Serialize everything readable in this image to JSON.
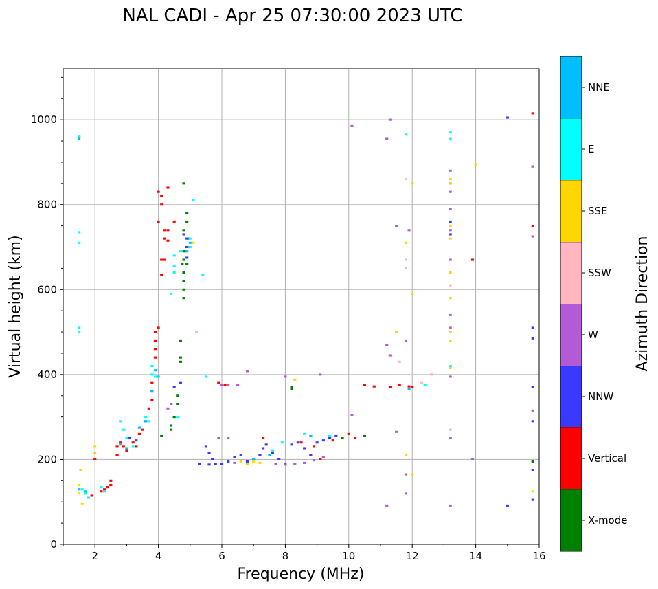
{
  "chart_data": {
    "type": "scatter",
    "title": "NAL CADI - Apr 25 07:30:00 2023 UTC",
    "xlabel": "Frequency (MHz)",
    "ylabel": "Virtual height (km)",
    "xlim": [
      1,
      16
    ],
    "ylim": [
      0,
      1120
    ],
    "xticks": [
      2,
      4,
      6,
      8,
      10,
      12,
      14,
      16
    ],
    "yticks": [
      0,
      200,
      400,
      600,
      800,
      1000
    ],
    "grid": true,
    "colorbar": {
      "label": "Azimuth Direction",
      "categories": [
        {
          "name": "X-mode",
          "color": "#008000"
        },
        {
          "name": "Vertical",
          "color": "#ff0000"
        },
        {
          "name": "NNW",
          "color": "#3a3aff"
        },
        {
          "name": "W",
          "color": "#b35ad6"
        },
        {
          "name": "SSW",
          "color": "#ffb6c1"
        },
        {
          "name": "SSE",
          "color": "#ffd700"
        },
        {
          "name": "E",
          "color": "#00ffff"
        },
        {
          "name": "NNE",
          "color": "#00bfff"
        }
      ]
    },
    "series": [
      {
        "name": "X-mode",
        "points": [
          [
            4.8,
            850
          ],
          [
            4.9,
            780
          ],
          [
            4.9,
            760
          ],
          [
            4.8,
            740
          ],
          [
            4.9,
            700
          ],
          [
            4.8,
            690
          ],
          [
            4.8,
            670
          ],
          [
            4.9,
            660
          ],
          [
            4.8,
            640
          ],
          [
            4.8,
            620
          ],
          [
            4.8,
            600
          ],
          [
            4.8,
            580
          ],
          [
            4.7,
            480
          ],
          [
            4.7,
            440
          ],
          [
            4.7,
            430
          ],
          [
            4.6,
            350
          ],
          [
            4.6,
            330
          ],
          [
            4.5,
            300
          ],
          [
            4.4,
            280
          ],
          [
            4.4,
            270
          ],
          [
            4.1,
            255
          ],
          [
            5.9,
            380
          ],
          [
            8.2,
            370
          ],
          [
            8.2,
            365
          ],
          [
            9.8,
            250
          ],
          [
            10.5,
            255
          ],
          [
            15.8,
            195
          ],
          [
            4.95,
            720
          ],
          [
            4.85,
            690
          ],
          [
            4.75,
            660
          ]
        ]
      },
      {
        "name": "Vertical",
        "points": [
          [
            1.5,
            960
          ],
          [
            4.0,
            830
          ],
          [
            4.1,
            820
          ],
          [
            4.3,
            840
          ],
          [
            4.1,
            800
          ],
          [
            4.0,
            760
          ],
          [
            4.3,
            740
          ],
          [
            4.2,
            720
          ],
          [
            4.3,
            715
          ],
          [
            4.1,
            670
          ],
          [
            4.2,
            670
          ],
          [
            4.1,
            635
          ],
          [
            4.0,
            510
          ],
          [
            3.9,
            500
          ],
          [
            3.9,
            480
          ],
          [
            3.9,
            460
          ],
          [
            3.9,
            440
          ],
          [
            3.8,
            380
          ],
          [
            3.8,
            360
          ],
          [
            3.8,
            340
          ],
          [
            3.7,
            320
          ],
          [
            3.6,
            290
          ],
          [
            3.5,
            270
          ],
          [
            3.4,
            260
          ],
          [
            3.3,
            230
          ],
          [
            3.2,
            240
          ],
          [
            3.0,
            220
          ],
          [
            2.9,
            230
          ],
          [
            2.8,
            240
          ],
          [
            2.7,
            230
          ],
          [
            2.7,
            210
          ],
          [
            2.5,
            150
          ],
          [
            2.5,
            140
          ],
          [
            2.4,
            135
          ],
          [
            2.3,
            130
          ],
          [
            2.2,
            125
          ],
          [
            2.0,
            200
          ],
          [
            1.9,
            115
          ],
          [
            7.3,
            250
          ],
          [
            8.5,
            240
          ],
          [
            8.9,
            230
          ],
          [
            9.1,
            200
          ],
          [
            9.5,
            245
          ],
          [
            10.0,
            260
          ],
          [
            10.2,
            250
          ],
          [
            10.5,
            375
          ],
          [
            10.8,
            372
          ],
          [
            11.3,
            370
          ],
          [
            11.6,
            375
          ],
          [
            11.9,
            372
          ],
          [
            12.0,
            370
          ],
          [
            13.9,
            670
          ],
          [
            15.8,
            1015
          ],
          [
            15.8,
            750
          ],
          [
            5.9,
            380
          ],
          [
            6.1,
            375
          ],
          [
            4.5,
            760
          ],
          [
            4.2,
            740
          ]
        ]
      },
      {
        "name": "NNW",
        "points": [
          [
            4.9,
            720
          ],
          [
            4.9,
            700
          ],
          [
            4.8,
            730
          ],
          [
            4.9,
            675
          ],
          [
            4.7,
            380
          ],
          [
            4.5,
            370
          ],
          [
            4.4,
            330
          ],
          [
            5.5,
            230
          ],
          [
            5.6,
            215
          ],
          [
            5.7,
            200
          ],
          [
            5.8,
            190
          ],
          [
            6.0,
            190
          ],
          [
            6.2,
            195
          ],
          [
            6.4,
            205
          ],
          [
            6.6,
            210
          ],
          [
            6.8,
            195
          ],
          [
            7.0,
            200
          ],
          [
            7.2,
            210
          ],
          [
            7.3,
            225
          ],
          [
            7.4,
            235
          ],
          [
            7.6,
            215
          ],
          [
            7.8,
            200
          ],
          [
            8.0,
            190
          ],
          [
            8.2,
            235
          ],
          [
            8.4,
            240
          ],
          [
            8.6,
            225
          ],
          [
            8.8,
            210
          ],
          [
            9.0,
            240
          ],
          [
            9.2,
            245
          ],
          [
            9.4,
            250
          ],
          [
            9.6,
            255
          ],
          [
            13.2,
            760
          ],
          [
            13.2,
            730
          ],
          [
            15.0,
            1005
          ],
          [
            15.8,
            890
          ],
          [
            15.8,
            510
          ],
          [
            15.8,
            485
          ],
          [
            15.8,
            370
          ],
          [
            15.8,
            290
          ],
          [
            15.8,
            175
          ],
          [
            15.8,
            105
          ],
          [
            15.0,
            90
          ],
          [
            3.1,
            250
          ],
          [
            3.3,
            245
          ],
          [
            5.3,
            190
          ],
          [
            5.6,
            188
          ]
        ]
      },
      {
        "name": "W",
        "points": [
          [
            4.4,
            330
          ],
          [
            4.3,
            320
          ],
          [
            6.0,
            375
          ],
          [
            6.2,
            375
          ],
          [
            6.5,
            375
          ],
          [
            6.8,
            408
          ],
          [
            5.9,
            250
          ],
          [
            6.2,
            250
          ],
          [
            8.0,
            395
          ],
          [
            9.1,
            400
          ],
          [
            10.1,
            985
          ],
          [
            10.1,
            305
          ],
          [
            11.3,
            1000
          ],
          [
            11.2,
            955
          ],
          [
            11.2,
            470
          ],
          [
            11.3,
            445
          ],
          [
            11.5,
            750
          ],
          [
            11.8,
            480
          ],
          [
            11.9,
            740
          ],
          [
            11.8,
            165
          ],
          [
            11.8,
            120
          ],
          [
            11.5,
            265
          ],
          [
            11.2,
            90
          ],
          [
            13.2,
            880
          ],
          [
            13.2,
            850
          ],
          [
            13.2,
            830
          ],
          [
            13.2,
            790
          ],
          [
            13.2,
            740
          ],
          [
            13.2,
            670
          ],
          [
            13.2,
            540
          ],
          [
            13.2,
            510
          ],
          [
            13.2,
            395
          ],
          [
            13.2,
            250
          ],
          [
            13.2,
            90
          ],
          [
            13.9,
            200
          ],
          [
            15.8,
            890
          ],
          [
            15.8,
            725
          ],
          [
            15.8,
            315
          ],
          [
            7.7,
            190
          ],
          [
            8.0,
            188
          ],
          [
            8.3,
            190
          ],
          [
            8.6,
            192
          ],
          [
            8.9,
            198
          ],
          [
            9.2,
            205
          ],
          [
            6.4,
            192
          ]
        ]
      },
      {
        "name": "SSW",
        "points": [
          [
            5.2,
            500
          ],
          [
            11.8,
            860
          ],
          [
            11.8,
            670
          ],
          [
            11.8,
            650
          ],
          [
            11.6,
            430
          ],
          [
            12.0,
            400
          ],
          [
            12.3,
            380
          ],
          [
            12.6,
            400
          ],
          [
            13.2,
            610
          ],
          [
            13.2,
            270
          ]
        ]
      },
      {
        "name": "SSE",
        "points": [
          [
            1.55,
            175
          ],
          [
            1.5,
            140
          ],
          [
            1.5,
            120
          ],
          [
            1.6,
            95
          ],
          [
            2.0,
            230
          ],
          [
            2.0,
            215
          ],
          [
            5.1,
            710
          ],
          [
            6.6,
            195
          ],
          [
            6.8,
            190
          ],
          [
            7.0,
            195
          ],
          [
            7.2,
            192
          ],
          [
            8.3,
            388
          ],
          [
            11.5,
            500
          ],
          [
            11.8,
            710
          ],
          [
            12.0,
            590
          ],
          [
            12.0,
            850
          ],
          [
            12.0,
            165
          ],
          [
            11.8,
            210
          ],
          [
            13.2,
            860
          ],
          [
            13.2,
            850
          ],
          [
            13.2,
            750
          ],
          [
            13.2,
            720
          ],
          [
            13.2,
            640
          ],
          [
            13.2,
            580
          ],
          [
            13.2,
            500
          ],
          [
            13.2,
            480
          ],
          [
            13.2,
            415
          ],
          [
            14.0,
            895
          ],
          [
            15.8,
            125
          ]
        ]
      },
      {
        "name": "E",
        "points": [
          [
            1.5,
            735
          ],
          [
            1.5,
            710
          ],
          [
            1.5,
            510
          ],
          [
            1.5,
            500
          ],
          [
            1.5,
            960
          ],
          [
            1.6,
            130
          ],
          [
            1.7,
            120
          ],
          [
            1.8,
            110
          ],
          [
            2.2,
            135
          ],
          [
            2.3,
            125
          ],
          [
            2.8,
            290
          ],
          [
            2.9,
            270
          ],
          [
            3.0,
            250
          ],
          [
            3.2,
            230
          ],
          [
            3.6,
            300
          ],
          [
            3.7,
            290
          ],
          [
            3.8,
            420
          ],
          [
            3.8,
            400
          ],
          [
            3.9,
            395
          ],
          [
            4.6,
            300
          ],
          [
            4.7,
            690
          ],
          [
            4.5,
            680
          ],
          [
            4.4,
            590
          ],
          [
            4.5,
            640
          ],
          [
            4.5,
            655
          ],
          [
            5.1,
            810
          ],
          [
            5.0,
            720
          ],
          [
            5.0,
            700
          ],
          [
            5.4,
            635
          ],
          [
            5.5,
            395
          ],
          [
            7.6,
            220
          ],
          [
            7.9,
            240
          ],
          [
            8.6,
            260
          ],
          [
            9.4,
            255
          ],
          [
            11.8,
            965
          ],
          [
            13.2,
            970
          ],
          [
            13.2,
            955
          ],
          [
            13.2,
            420
          ],
          [
            12.4,
            375
          ]
        ]
      },
      {
        "name": "NNE",
        "points": [
          [
            1.5,
            955
          ],
          [
            1.5,
            130
          ],
          [
            1.7,
            125
          ],
          [
            2.8,
            235
          ],
          [
            3.0,
            225
          ],
          [
            3.4,
            275
          ],
          [
            3.6,
            290
          ],
          [
            3.8,
            360
          ],
          [
            3.9,
            410
          ],
          [
            4.0,
            395
          ],
          [
            4.9,
            690
          ],
          [
            5.0,
            710
          ],
          [
            7.0,
            200
          ],
          [
            7.5,
            210
          ],
          [
            8.8,
            255
          ],
          [
            11.9,
            365
          ]
        ]
      }
    ]
  }
}
